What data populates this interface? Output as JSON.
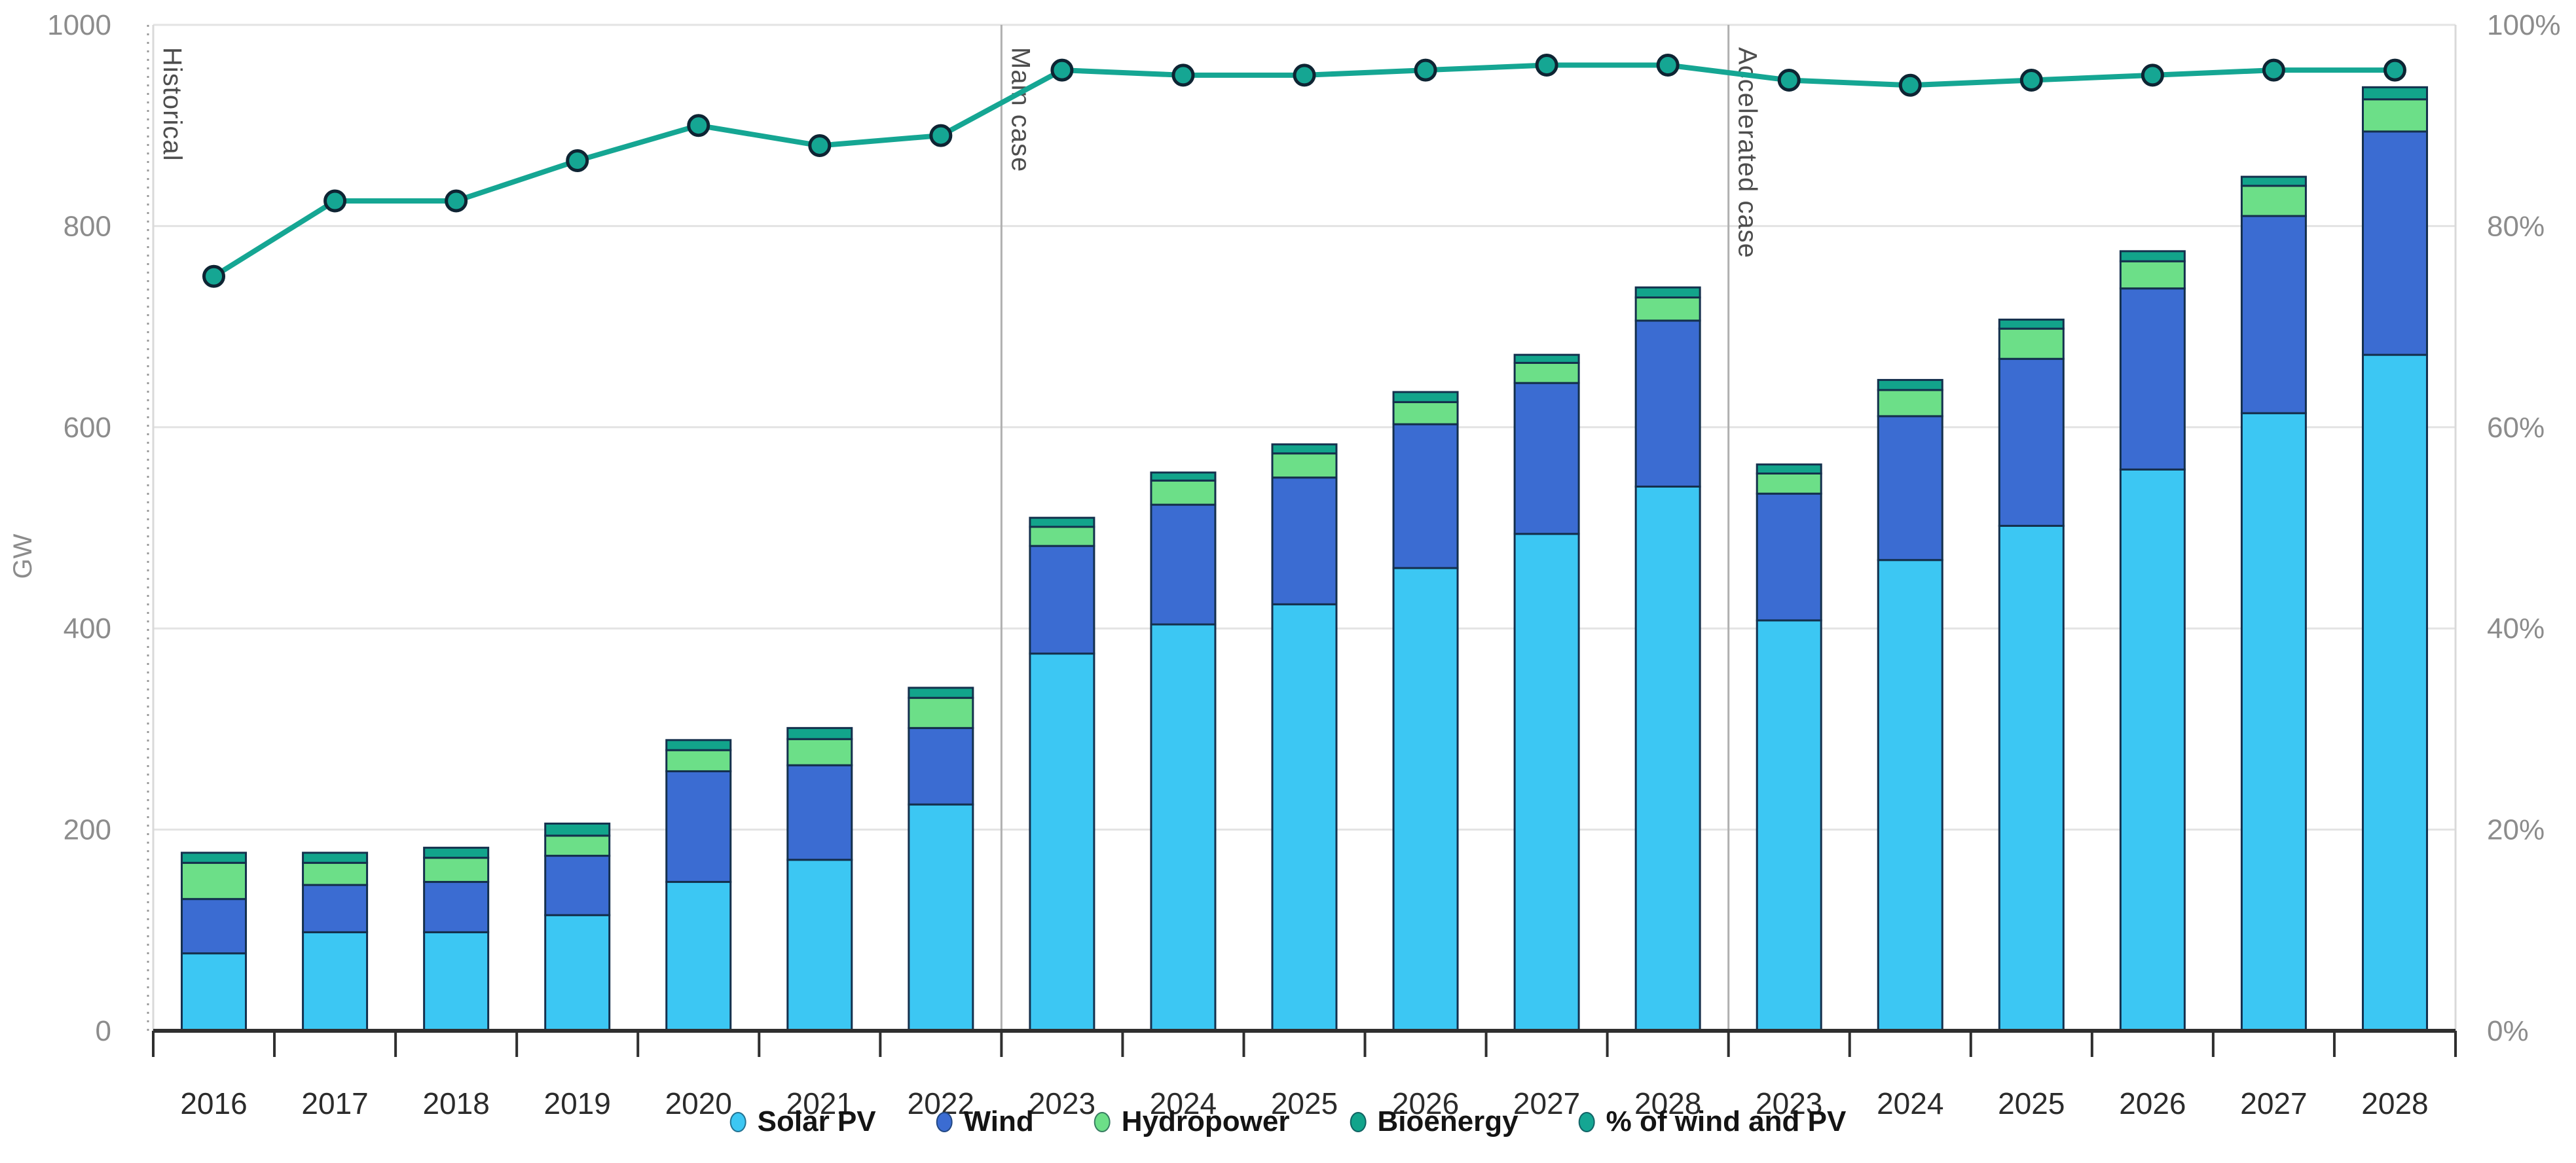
{
  "chart_data": {
    "type": "stacked-bar-with-line",
    "title": "",
    "unit_left": "GW",
    "unit_right": "%",
    "axis_left": {
      "label": "GW",
      "min": 0,
      "max": 1000,
      "ticks": [
        0,
        200,
        400,
        600,
        800,
        1000
      ]
    },
    "axis_right": {
      "min": 0,
      "max": 100,
      "ticks": [
        0,
        20,
        40,
        60,
        80,
        100
      ],
      "suffix": "%"
    },
    "grid": "horizontal",
    "legend_position": "bottom-center",
    "stack_order": [
      "solar_pv",
      "wind",
      "hydropower",
      "bioenergy"
    ],
    "series_labels": {
      "solar_pv": "Solar PV",
      "wind": "Wind",
      "hydropower": "Hydropower",
      "bioenergy": "Bioenergy",
      "share_line": "% of wind and PV"
    },
    "colors": {
      "solar_pv": "#3cc7f3",
      "wind": "#3b6cd2",
      "hydropower": "#6cdf88",
      "bioenergy": "#12a48b",
      "share_line": "#15a693",
      "bar_border": "#14304d",
      "marker_border": "#0e2433",
      "grid_line": "#e3e3e3",
      "axis_line": "#2f2f2f",
      "axis_text": "#8c8c8c",
      "year_text": "#2b2b2b",
      "section_text": "#4d4d4d",
      "section_divider": "#b0b0b0",
      "plot_edge": "#d9d9d9",
      "left_tick_dots": "#9a9a9a",
      "legend_text": "#141414",
      "background": "#ffffff"
    },
    "sections": [
      {
        "label": "Historical",
        "years": [
          "2016",
          "2017",
          "2018",
          "2019",
          "2020",
          "2021",
          "2022"
        ],
        "solar_pv": [
          77,
          98,
          98,
          115,
          148,
          170,
          225
        ],
        "wind": [
          54,
          47,
          50,
          59,
          110,
          94,
          76
        ],
        "hydropower": [
          36,
          22,
          24,
          20,
          21,
          26,
          30
        ],
        "bioenergy": [
          10,
          10,
          10,
          12,
          10,
          11,
          10
        ],
        "share_line": [
          75,
          82.5,
          82.5,
          86.5,
          90,
          88,
          89
        ]
      },
      {
        "label": "Main case",
        "years": [
          "2023",
          "2024",
          "2025",
          "2026",
          "2027",
          "2028"
        ],
        "solar_pv": [
          375,
          404,
          424,
          460,
          494,
          541
        ],
        "wind": [
          107,
          119,
          126,
          143,
          150,
          165
        ],
        "hydropower": [
          19,
          24,
          24,
          22,
          20,
          23
        ],
        "bioenergy": [
          9,
          8,
          9,
          10,
          8,
          10
        ],
        "share_line": [
          95.5,
          95,
          95,
          95.5,
          96,
          96
        ]
      },
      {
        "label": "Accelerated case",
        "years": [
          "2023",
          "2024",
          "2025",
          "2026",
          "2027",
          "2028"
        ],
        "solar_pv": [
          408,
          468,
          502,
          558,
          614,
          672
        ],
        "wind": [
          126,
          143,
          166,
          180,
          196,
          222
        ],
        "hydropower": [
          20,
          26,
          30,
          27,
          30,
          32
        ],
        "bioenergy": [
          9,
          10,
          9,
          10,
          9,
          12
        ],
        "share_line": [
          94.5,
          94,
          94.5,
          95,
          95.5,
          95.5
        ]
      }
    ],
    "legend": [
      {
        "key": "solar_pv",
        "label": "Solar PV"
      },
      {
        "key": "wind",
        "label": "Wind"
      },
      {
        "key": "hydropower",
        "label": "Hydropower"
      },
      {
        "key": "bioenergy",
        "label": "Bioenergy"
      },
      {
        "key": "share_line",
        "label": "% of wind and PV"
      }
    ]
  }
}
